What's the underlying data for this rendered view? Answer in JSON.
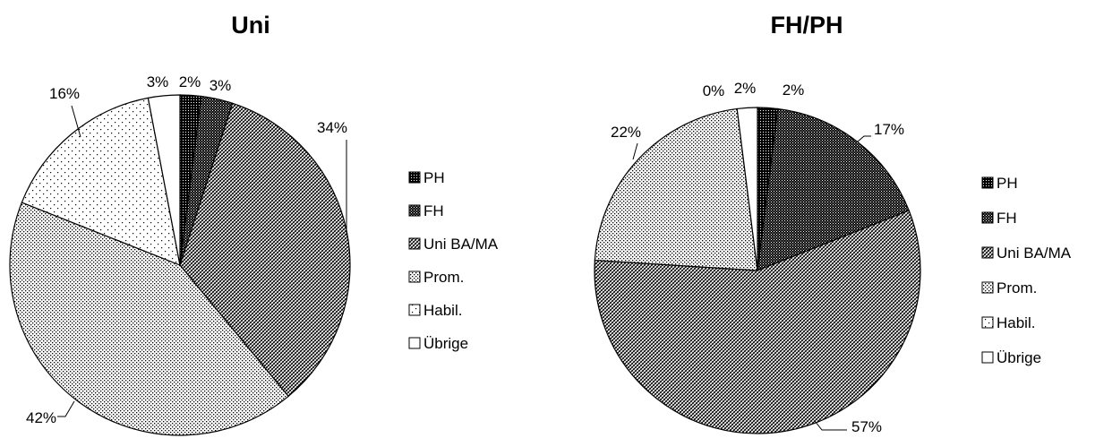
{
  "chart_data": [
    {
      "type": "pie",
      "title": "Uni",
      "categories": [
        "PH",
        "FH",
        "Uni BA/MA",
        "Prom.",
        "Habil.",
        "Übrige"
      ],
      "values": [
        2,
        3,
        34,
        42,
        16,
        3
      ],
      "value_labels": [
        "2%",
        "3%",
        "34%",
        "42%",
        "16%",
        "3%"
      ],
      "legend": {
        "placement": "right",
        "entries": [
          "PH",
          "FH",
          "Uni BA/MA",
          "Prom.",
          "Habil.",
          "Übrige"
        ]
      }
    },
    {
      "type": "pie",
      "title": "FH/PH",
      "categories": [
        "PH",
        "FH",
        "Uni BA/MA",
        "Prom.",
        "Habil.",
        "Übrige"
      ],
      "values": [
        2,
        17,
        57,
        22,
        0,
        2
      ],
      "value_labels": [
        "2%",
        "17%",
        "57%",
        "22%",
        "0%",
        "2%"
      ],
      "legend": {
        "placement": "right",
        "entries": [
          "PH",
          "FH",
          "Uni BA/MA",
          "Prom.",
          "Habil.",
          "Übrige"
        ]
      }
    }
  ]
}
